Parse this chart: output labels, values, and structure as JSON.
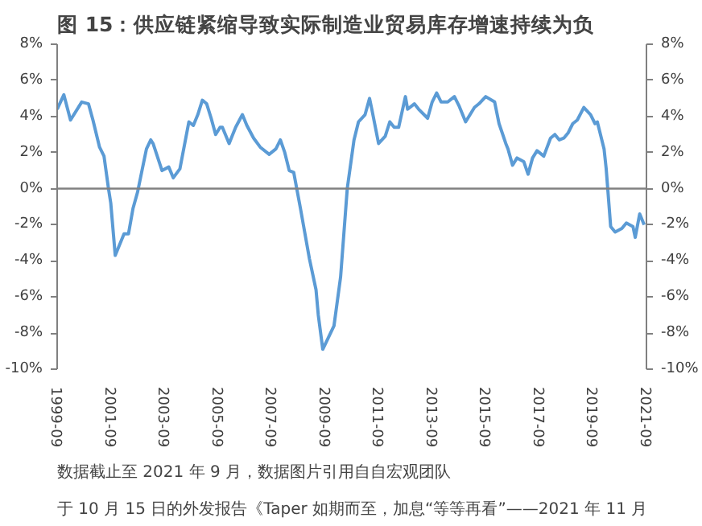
{
  "chart_data": {
    "type": "line",
    "title": "图 15：供应链紧缩导致实际制造业贸易库存增速持续为负",
    "x": [
      "1999-09",
      "1999-12",
      "2000-03",
      "2000-08",
      "2000-11",
      "2001-01",
      "2001-04",
      "2001-06",
      "2001-08",
      "2001-09",
      "2001-11",
      "2002-03",
      "2002-05",
      "2002-07",
      "2002-09",
      "2002-12",
      "2003-01",
      "2003-03",
      "2003-04",
      "2003-08",
      "2003-11",
      "2004-01",
      "2004-04",
      "2004-08",
      "2004-10",
      "2004-12",
      "2005-02",
      "2005-04",
      "2005-06",
      "2005-08",
      "2005-10",
      "2005-11",
      "2006-02",
      "2006-05",
      "2006-08",
      "2006-10",
      "2007-01",
      "2007-04",
      "2007-08",
      "2007-11",
      "2008-01",
      "2008-03",
      "2008-05",
      "2008-07",
      "2008-10",
      "2009-02",
      "2009-05",
      "2009-06",
      "2009-08",
      "2010-01",
      "2010-04",
      "2010-07",
      "2010-10",
      "2010-12",
      "2011-03",
      "2011-05",
      "2011-06",
      "2011-09",
      "2011-12",
      "2012-02",
      "2012-04",
      "2012-06",
      "2012-09",
      "2012-10",
      "2013-01",
      "2013-03",
      "2013-07",
      "2013-09",
      "2013-11",
      "2014-01",
      "2014-04",
      "2014-07",
      "2014-09",
      "2014-12",
      "2015-04",
      "2015-06",
      "2015-09",
      "2016-01",
      "2016-03",
      "2016-06",
      "2016-07",
      "2016-09",
      "2016-11",
      "2017-02",
      "2017-04",
      "2017-06",
      "2017-08",
      "2017-11",
      "2018-02",
      "2018-04",
      "2018-06",
      "2018-08",
      "2018-10",
      "2018-12",
      "2019-02",
      "2019-05",
      "2019-08",
      "2019-10",
      "2019-11",
      "2020-02",
      "2020-03",
      "2020-05",
      "2020-07",
      "2020-10",
      "2020-12",
      "2021-03",
      "2021-04",
      "2021-06",
      "2021-08"
    ],
    "series": [
      {
        "color": "#5b9bd5",
        "values": [
          4.4,
          5.2,
          3.8,
          4.8,
          4.7,
          3.8,
          2.3,
          1.8,
          0,
          -0.8,
          -3.7,
          -2.5,
          -2.5,
          -1.1,
          -0.2,
          1.6,
          2.2,
          2.7,
          2.5,
          1.0,
          1.2,
          0.6,
          1.1,
          3.7,
          3.5,
          4.1,
          4.9,
          4.7,
          3.9,
          3.0,
          3.4,
          3.4,
          2.5,
          3.4,
          4.1,
          3.5,
          2.8,
          2.3,
          1.9,
          2.2,
          2.7,
          2.0,
          1.0,
          0.9,
          -1.1,
          -3.9,
          -5.6,
          -7.0,
          -8.9,
          -7.6,
          -4.9,
          0,
          2.7,
          3.7,
          4.1,
          5.0,
          4.4,
          2.5,
          2.9,
          3.7,
          3.4,
          3.4,
          5.1,
          4.4,
          4.7,
          4.4,
          3.9,
          4.8,
          5.3,
          4.8,
          4.8,
          5.1,
          4.6,
          3.7,
          4.5,
          4.7,
          5.1,
          4.8,
          3.6,
          2.5,
          2.2,
          1.3,
          1.7,
          1.5,
          0.8,
          1.7,
          2.1,
          1.8,
          2.8,
          3.0,
          2.7,
          2.8,
          3.1,
          3.6,
          3.8,
          4.5,
          4.1,
          3.6,
          3.7,
          2.2,
          1.1,
          -2.1,
          -2.4,
          -2.2,
          -1.9,
          -2.1,
          -2.7,
          -1.4,
          -2.0
        ]
      }
    ],
    "xlim": [
      "1999-09",
      "2021-09"
    ],
    "xticks": [
      "1999-09",
      "2001-09",
      "2003-09",
      "2005-09",
      "2007-09",
      "2009-09",
      "2011-09",
      "2013-09",
      "2015-09",
      "2017-09",
      "2019-09",
      "2021-09"
    ],
    "ylim": [
      -10,
      8
    ],
    "yticks": [
      {
        "value": -10,
        "label": "-10%"
      },
      {
        "value": -8,
        "label": "-8%"
      },
      {
        "value": -6,
        "label": "-6%"
      },
      {
        "value": -4,
        "label": "-4%"
      },
      {
        "value": -2,
        "label": "-2%"
      },
      {
        "value": 0,
        "label": "0%"
      },
      {
        "value": 2,
        "label": "2%"
      },
      {
        "value": 4,
        "label": "4%"
      },
      {
        "value": 6,
        "label": "6%"
      },
      {
        "value": 8,
        "label": "8%"
      }
    ],
    "y2lim": [
      -10,
      8
    ],
    "y2ticks": [
      {
        "value": -10,
        "label": "-10%"
      },
      {
        "value": -8,
        "label": "-8%"
      },
      {
        "value": -6,
        "label": "-6%"
      },
      {
        "value": -4,
        "label": "-4%"
      },
      {
        "value": -2,
        "label": "-2%"
      },
      {
        "value": 0,
        "label": "0%"
      },
      {
        "value": 2,
        "label": "2%"
      },
      {
        "value": 4,
        "label": "4%"
      },
      {
        "value": 6,
        "label": "6%"
      },
      {
        "value": 8,
        "label": "8%"
      }
    ],
    "ref_lines": [
      {
        "axis": "y",
        "value": 0,
        "color": "#808080"
      }
    ],
    "grid": false,
    "marker": "none",
    "line_style": "solid",
    "annotations": [
      "数据截止至 2021 年 9 月，数据图片引用自自宏观团队",
      "于 10 月 15 日的外发报告《Taper 如期而至，加息“等等再看”——2021 年 11 月"
    ]
  }
}
